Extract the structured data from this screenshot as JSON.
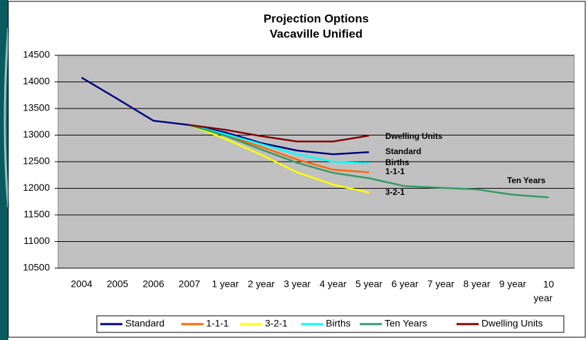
{
  "chart_data": {
    "type": "line",
    "title": "Projection Options",
    "subtitle": "Vacaville Unified",
    "categories": [
      "2004",
      "2005",
      "2006",
      "2007",
      "1 year",
      "2 year",
      "3 year",
      "4 year",
      "5 year",
      "6 year",
      "7 year",
      "8 year",
      "9 year",
      "10 year"
    ],
    "series": [
      {
        "name": "Standard",
        "color": "#000080",
        "values": [
          14080,
          13680,
          13270,
          13190,
          13050,
          12850,
          12710,
          12640,
          12680,
          null,
          null,
          null,
          null,
          null
        ]
      },
      {
        "name": "1-1-1",
        "color": "#ff6600",
        "values": [
          null,
          null,
          null,
          13190,
          13000,
          12780,
          12540,
          12350,
          12300,
          null,
          null,
          null,
          null,
          null
        ]
      },
      {
        "name": "3-2-1",
        "color": "#ffff00",
        "values": [
          null,
          null,
          null,
          13190,
          12930,
          12630,
          12300,
          12070,
          11920,
          null,
          null,
          null,
          null,
          null
        ]
      },
      {
        "name": "Births",
        "color": "#00ffff",
        "values": [
          null,
          null,
          null,
          13190,
          13020,
          12830,
          12640,
          12500,
          12470,
          null,
          null,
          null,
          null,
          null
        ]
      },
      {
        "name": "Ten Years",
        "color": "#339966",
        "values": [
          null,
          null,
          null,
          13190,
          12990,
          12730,
          12480,
          12290,
          12190,
          12040,
          12010,
          11980,
          11880,
          11830
        ]
      },
      {
        "name": "Dwelling Units",
        "color": "#800000",
        "values": [
          null,
          null,
          null,
          13190,
          13100,
          12980,
          12880,
          12880,
          12990,
          null,
          null,
          null,
          null,
          null
        ]
      }
    ],
    "annotations": [
      "Dwelling Units",
      "Standard",
      "Births",
      "1-1-1",
      "3-2-1",
      "Ten Years"
    ],
    "ylim": [
      10500,
      14500
    ],
    "yticks": [
      10500,
      11000,
      11500,
      12000,
      12500,
      13000,
      13500,
      14000,
      14500
    ],
    "grid": true,
    "legend": "bottom"
  }
}
